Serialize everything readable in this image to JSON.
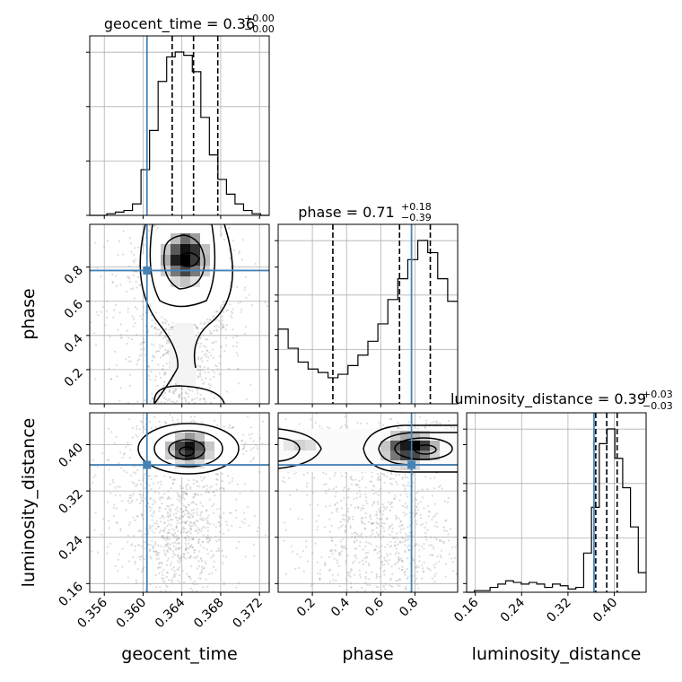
{
  "chart_data": {
    "type": "corner",
    "params": [
      {
        "name": "geocent_time",
        "label": "geocent_time",
        "range": [
          0.3545,
          0.373
        ],
        "ticks": [
          0.356,
          0.36,
          0.364,
          0.368,
          0.372
        ],
        "tick_labels": [
          "0.356",
          "0.360",
          "0.364",
          "0.368",
          "0.372"
        ],
        "truth": 0.3604,
        "quantiles": [
          0.363,
          0.3652,
          0.3677
        ],
        "title_main": "geocent_time = 0.36",
        "title_sup": "+0.00",
        "title_sub": "−0.00"
      },
      {
        "name": "phase",
        "label": "phase",
        "range": [
          0.0,
          1.05
        ],
        "ticks": [
          0.2,
          0.4,
          0.6,
          0.8
        ],
        "tick_labels": [
          "0.2",
          "0.4",
          "0.6",
          "0.8"
        ],
        "truth": 0.78,
        "quantiles": [
          0.32,
          0.71,
          0.89
        ],
        "title_main": "phase = 0.71",
        "title_sup": "+0.18",
        "title_sub": "−0.39"
      },
      {
        "name": "luminosity_distance",
        "label": "luminosity_distance",
        "range": [
          0.145,
          0.455
        ],
        "ticks": [
          0.16,
          0.24,
          0.32,
          0.4
        ],
        "tick_labels": [
          "0.16",
          "0.24",
          "0.32",
          "0.40"
        ],
        "truth": 0.365,
        "quantiles": [
          0.368,
          0.387,
          0.405
        ],
        "title_main": "luminosity_distance = 0.39",
        "title_sup": "+0.03",
        "title_sub": "−0.03"
      }
    ],
    "histograms": [
      {
        "param": "geocent_time",
        "values": [
          0,
          0,
          1,
          2,
          3,
          7,
          28,
          52,
          82,
          97,
          100,
          98,
          88,
          60,
          37,
          22,
          13,
          7,
          3,
          1,
          0
        ]
      },
      {
        "param": "phase",
        "values": [
          43,
          32,
          24,
          20,
          18,
          15,
          17,
          22,
          28,
          36,
          46,
          60,
          72,
          83,
          94,
          87,
          72,
          59
        ]
      },
      {
        "param": "luminosity_distance",
        "values": [
          0,
          1,
          1,
          3,
          5,
          7,
          6,
          5,
          6,
          5,
          3,
          5,
          4,
          2,
          3,
          24,
          52,
          91,
          100,
          82,
          64,
          40,
          12
        ]
      }
    ],
    "grid": true,
    "truth_color": "#4682b4"
  }
}
